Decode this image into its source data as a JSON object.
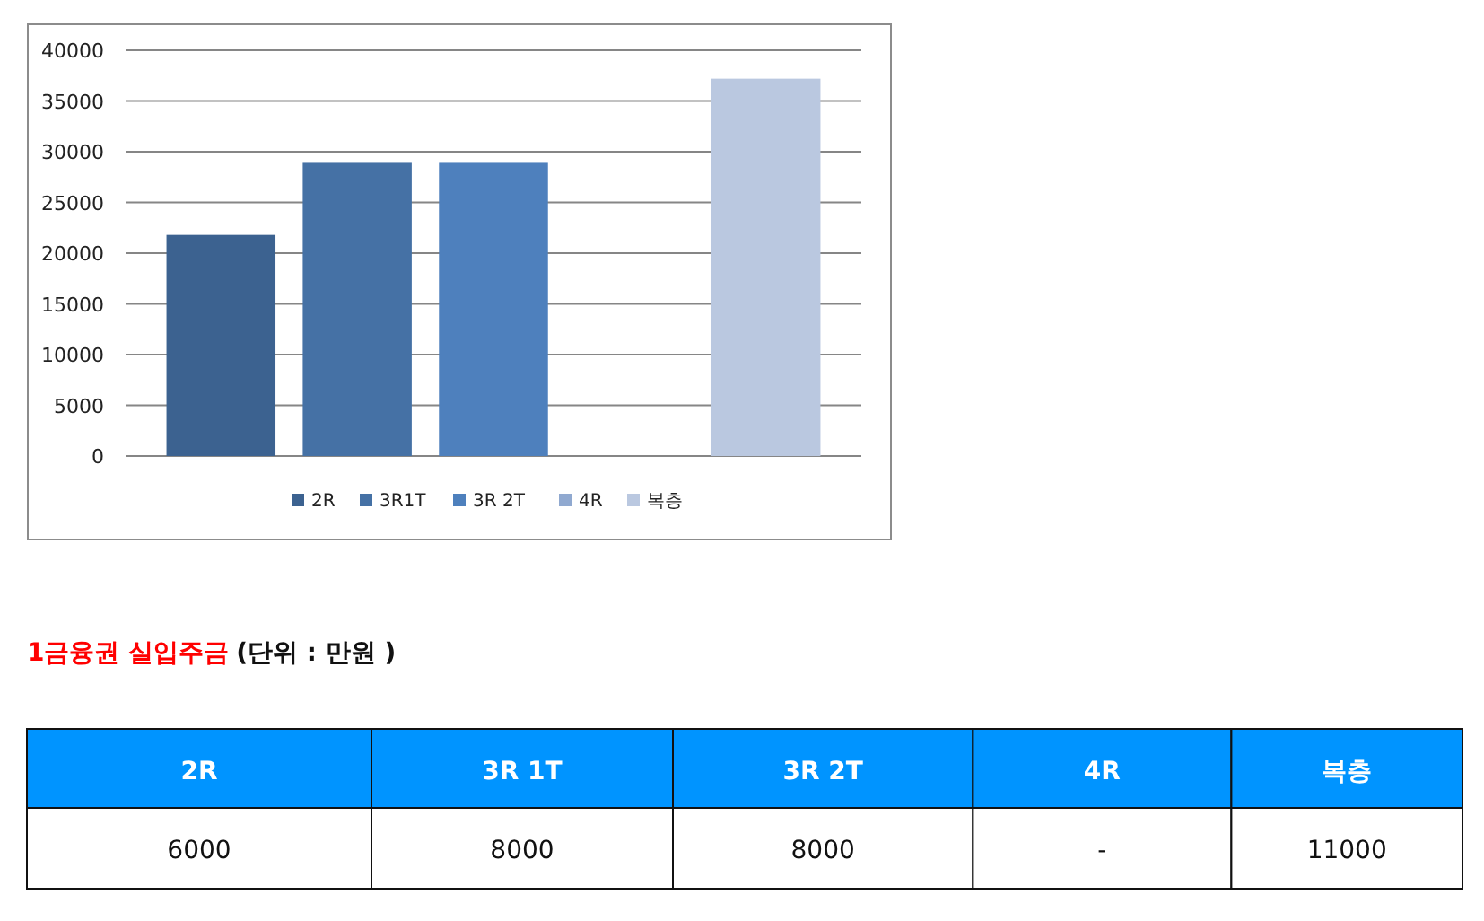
{
  "chart_data": [
    {
      "type": "bar",
      "categories": [
        null
      ],
      "ylim": [
        0,
        40000
      ],
      "yticks": [
        0,
        5000,
        10000,
        15000,
        20000,
        25000,
        30000,
        35000,
        40000
      ],
      "grid": "y",
      "legend": "bottom",
      "series": [
        {
          "name": "2R",
          "color": "#3c6290",
          "values": [
            21800
          ]
        },
        {
          "name": "3R1T",
          "color": "#4571a5",
          "values": [
            28900
          ]
        },
        {
          "name": "3R 2T",
          "color": "#4e80bd",
          "values": [
            28900
          ]
        },
        {
          "name": "4R",
          "color": "#90a9d0",
          "values": [
            null
          ]
        },
        {
          "name": "복층",
          "color": "#bac8e0",
          "values": [
            37200
          ]
        }
      ]
    },
    {
      "type": "other",
      "title": "1금융권 실입주금",
      "subtitle": "(단위 : 만원 )",
      "categories": [
        "2R",
        "3R 1T",
        "3R 2T",
        "4R",
        "복층"
      ],
      "value_labels": [
        "6000",
        "8000",
        "8000",
        "-",
        "11000"
      ]
    }
  ]
}
